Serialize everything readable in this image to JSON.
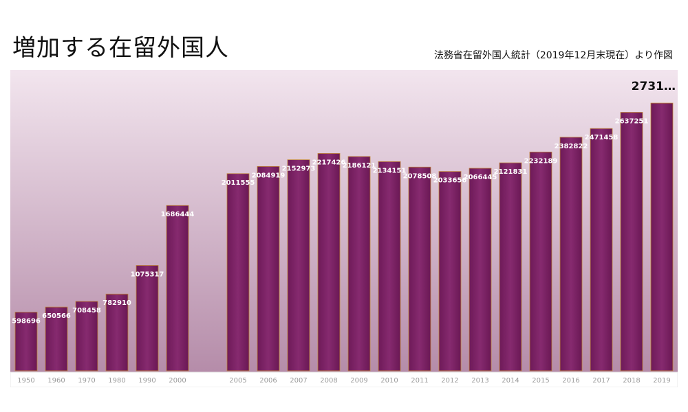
{
  "title": "増加する在留外国人",
  "subtitle": "法務省在留外国人統計（2019年12月末現在）より作図",
  "callout": "2731…",
  "colors": {
    "bar": "#7b2163",
    "bar_light": "#9a3a85",
    "bar_edge": "#c2873a",
    "bg_top": "#f3e6ee",
    "bg_bottom": "#b08aa4"
  },
  "chart_data": {
    "type": "bar",
    "title": "増加する在留外国人",
    "subtitle": "法務省在留外国人統計（2019年12月末現在）より作図",
    "xlabel": "",
    "ylabel": "",
    "ylim": [
      0,
      2900000
    ],
    "grid": false,
    "categories": [
      "1950",
      "1960",
      "1970",
      "1980",
      "1990",
      "2000",
      "2005",
      "2006",
      "2007",
      "2008",
      "2009",
      "2010",
      "2011",
      "2012",
      "2013",
      "2014",
      "2015",
      "2016",
      "2017",
      "2018",
      "2019"
    ],
    "values": [
      598696,
      650566,
      708458,
      782910,
      1075317,
      1686444,
      2011555,
      2084919,
      2152973,
      2217426,
      2186121,
      2134151,
      2078508,
      2033656,
      2066445,
      2121831,
      2232189,
      2382822,
      2471458,
      2637251,
      2731093
    ],
    "labels": [
      "598696",
      "650566",
      "708458",
      "782910",
      "1075317",
      "1686444",
      "2011555",
      "2084919",
      "2152973",
      "2217426",
      "2186121",
      "2134151",
      "2078508",
      "2033656",
      "2066445",
      "2121831",
      "2232189",
      "2382822",
      "2471458",
      "2637251",
      ""
    ]
  }
}
